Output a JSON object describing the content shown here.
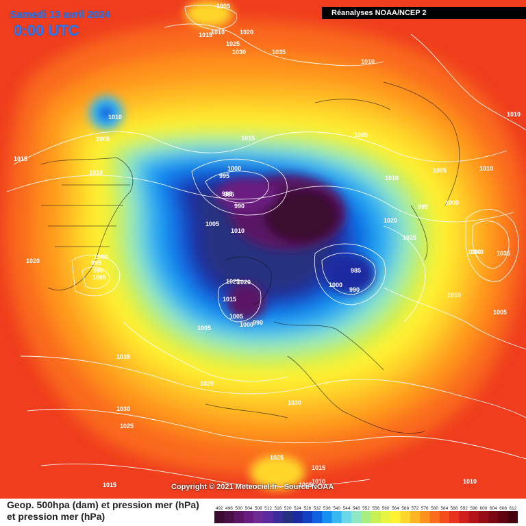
{
  "header": {
    "date_label": "Samedi 13 avril 2024",
    "time_label": "0:00 UTC",
    "source_label": "Réanalyses NOAA/NCEP 2"
  },
  "footer": {
    "copyright": "Copyright © 2021 Meteociel.fr - Source NOAA",
    "legend_line1": "Geop. 500hpa (dam) et pression mer (hPa)",
    "legend_line2": "et pression mer (hPa)"
  },
  "legend": {
    "ticks": [
      "492",
      "496",
      "500",
      "504",
      "508",
      "512",
      "516",
      "520",
      "524",
      "528",
      "532",
      "536",
      "540",
      "544",
      "548",
      "552",
      "556",
      "560",
      "564",
      "568",
      "572",
      "576",
      "580",
      "584",
      "588",
      "592",
      "596",
      "600",
      "604",
      "608",
      "612"
    ],
    "colors": [
      "#3a0b2e",
      "#4a0f45",
      "#5a1565",
      "#6a1b80",
      "#6f2b95",
      "#5a2aa0",
      "#3a2d9a",
      "#25307f",
      "#1a2aa0",
      "#1240c0",
      "#1060e0",
      "#1590ef",
      "#38b8f0",
      "#6ad8e8",
      "#8ee7c0",
      "#a8ee80",
      "#c8f050",
      "#e8f540",
      "#fff230",
      "#ffd72a",
      "#ffb424",
      "#ff921f",
      "#fb6e1d",
      "#f44d1e",
      "#ea321d",
      "#d0201b",
      "#b31418",
      "#960d16",
      "#7a0813",
      "#600510",
      "#47030c"
    ]
  },
  "isobar_labels": [
    {
      "text": "1005"
    },
    {
      "text": "1010"
    },
    {
      "text": "1015"
    },
    {
      "text": "1020"
    },
    {
      "text": "1025"
    },
    {
      "text": "1030"
    },
    {
      "text": "1035"
    },
    {
      "text": "1010"
    },
    {
      "text": "1005"
    },
    {
      "text": "1015"
    },
    {
      "text": "1010"
    },
    {
      "text": "1015"
    },
    {
      "text": "1000"
    },
    {
      "text": "995"
    },
    {
      "text": "985"
    },
    {
      "text": "990"
    },
    {
      "text": "1005"
    },
    {
      "text": "1010"
    },
    {
      "text": "1010"
    },
    {
      "text": "1005"
    },
    {
      "text": "1000"
    },
    {
      "text": "990"
    },
    {
      "text": "985"
    },
    {
      "text": "1020"
    },
    {
      "text": "1020"
    },
    {
      "text": "1025"
    },
    {
      "text": "1015"
    },
    {
      "text": "1000"
    },
    {
      "text": "1005"
    },
    {
      "text": "990"
    },
    {
      "text": "985"
    },
    {
      "text": "990"
    },
    {
      "text": "995"
    },
    {
      "text": "1000"
    },
    {
      "text": "1005"
    },
    {
      "text": "1020"
    },
    {
      "text": "1025"
    },
    {
      "text": "1010"
    },
    {
      "text": "1005"
    },
    {
      "text": "995"
    },
    {
      "text": "1000"
    },
    {
      "text": "1005"
    },
    {
      "text": "1010"
    },
    {
      "text": "1035"
    },
    {
      "text": "1005"
    },
    {
      "text": "1010"
    },
    {
      "text": "1035"
    },
    {
      "text": "1030"
    },
    {
      "text": "1025"
    },
    {
      "text": "1020"
    },
    {
      "text": "1030"
    },
    {
      "text": "1025"
    },
    {
      "text": "1015"
    },
    {
      "text": "1010"
    },
    {
      "text": "1015"
    },
    {
      "text": "1010"
    },
    {
      "text": "1005"
    },
    {
      "text": "1010"
    },
    {
      "text": "1000"
    },
    {
      "text": "1040"
    }
  ]
}
